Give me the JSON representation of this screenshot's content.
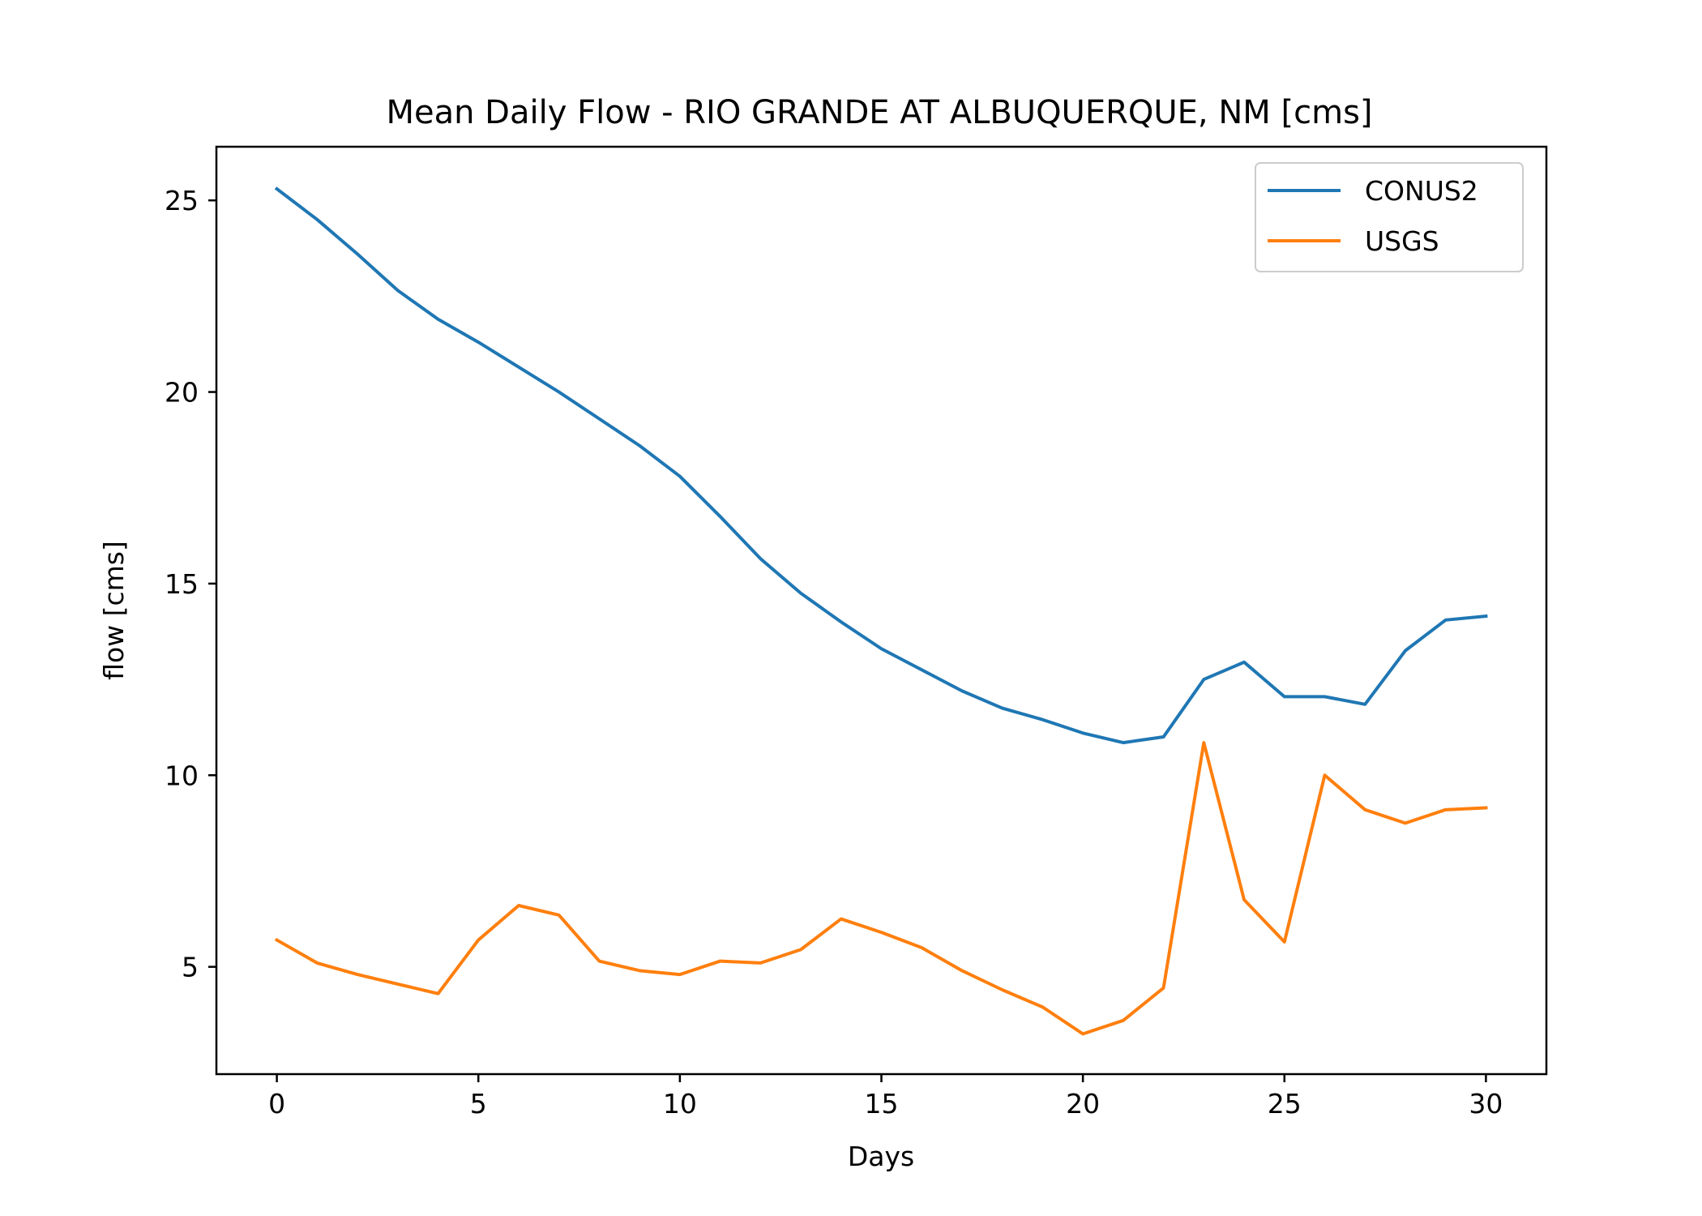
{
  "chart_data": {
    "type": "line",
    "title": "Mean Daily Flow - RIO GRANDE AT ALBUQUERQUE, NM [cms]",
    "xlabel": "Days",
    "ylabel": "flow [cms]",
    "xlim": [
      -1.5,
      31.5
    ],
    "ylim": [
      2.2,
      26.4
    ],
    "xticks": [
      0,
      5,
      10,
      15,
      20,
      25,
      30
    ],
    "yticks": [
      5,
      10,
      15,
      20,
      25
    ],
    "grid": false,
    "legend": "top-right",
    "x": [
      0,
      1,
      2,
      3,
      4,
      5,
      6,
      7,
      8,
      9,
      10,
      11,
      12,
      13,
      14,
      15,
      16,
      17,
      18,
      19,
      20,
      21,
      22,
      23,
      24,
      25,
      26,
      27,
      28,
      29,
      30
    ],
    "series": [
      {
        "name": "CONUS2",
        "color": "#1f77b4",
        "values": [
          25.3,
          24.5,
          23.6,
          22.65,
          21.9,
          21.3,
          20.65,
          20.0,
          19.3,
          18.6,
          17.8,
          16.75,
          15.65,
          14.75,
          14.0,
          13.3,
          12.75,
          12.2,
          11.75,
          11.45,
          11.1,
          10.85,
          11.0,
          12.5,
          12.95,
          12.05,
          12.05,
          11.85,
          13.25,
          14.05,
          14.15
        ]
      },
      {
        "name": "USGS",
        "color": "#ff7f0e",
        "values": [
          5.7,
          5.1,
          4.8,
          4.55,
          4.3,
          5.7,
          6.6,
          6.35,
          5.15,
          4.9,
          4.8,
          5.15,
          5.1,
          5.45,
          6.25,
          5.9,
          5.5,
          4.9,
          4.4,
          3.95,
          3.25,
          3.6,
          4.45,
          10.85,
          6.75,
          5.65,
          10.0,
          9.1,
          8.75,
          9.1,
          9.15
        ]
      }
    ]
  }
}
